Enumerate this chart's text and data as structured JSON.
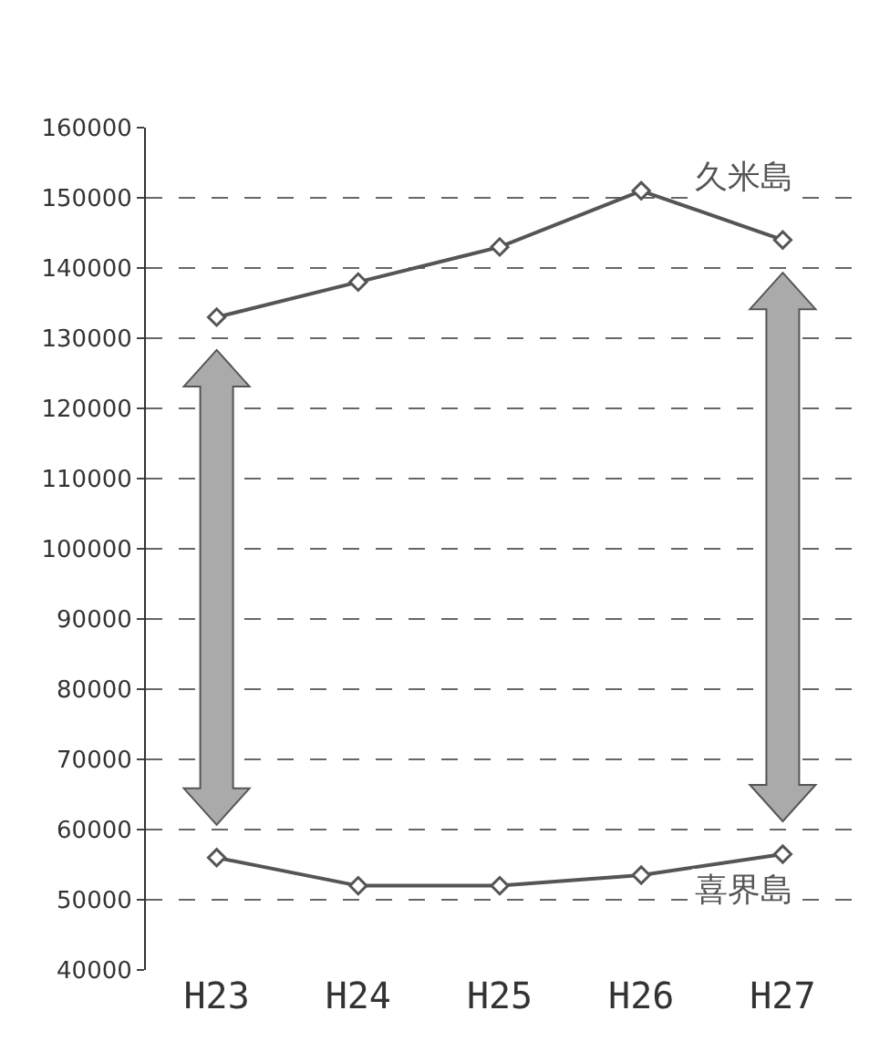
{
  "chart_data": {
    "type": "line",
    "categories": [
      "H23",
      "H24",
      "H25",
      "H26",
      "H27"
    ],
    "series": [
      {
        "name": "久米島",
        "color": "#555555",
        "values": [
          133000,
          138000,
          143000,
          151000,
          144000
        ]
      },
      {
        "name": "喜界島",
        "color": "#555555",
        "values": [
          56000,
          52000,
          52000,
          53500,
          56500
        ]
      }
    ],
    "ylim": [
      40000,
      160000
    ],
    "yticks": [
      40000,
      50000,
      60000,
      70000,
      80000,
      90000,
      100000,
      110000,
      120000,
      130000,
      140000,
      150000,
      160000
    ],
    "grid": "y",
    "marker": "diamond",
    "line_style": "solid",
    "legend": false
  }
}
